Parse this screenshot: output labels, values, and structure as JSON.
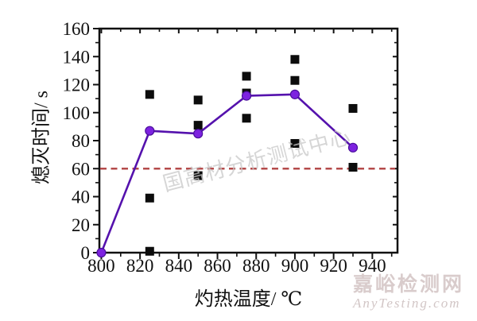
{
  "chart_data": {
    "type": "line",
    "title": "",
    "xlabel": "灼热温度/ ℃",
    "ylabel": "熄灭时间/ s",
    "xlim": [
      799,
      953
    ],
    "ylim": [
      0,
      160
    ],
    "x_major_ticks": [
      800,
      820,
      840,
      860,
      880,
      900,
      920,
      940
    ],
    "x_minor_ticks": [
      810,
      830,
      850,
      870,
      890,
      910,
      930,
      950
    ],
    "y_major_ticks": [
      0,
      20,
      40,
      60,
      80,
      100,
      120,
      140,
      160
    ],
    "y_minor_ticks": [
      10,
      30,
      50,
      70,
      90,
      110,
      130,
      150
    ],
    "grid": false,
    "legend": false,
    "reference_line": {
      "y": 60,
      "style": "dashed",
      "color": "#b54b4b"
    },
    "series": [
      {
        "name": "individual-measurements",
        "type": "scatter",
        "marker": "square",
        "color": "#0c0c0c",
        "points": [
          [
            825,
            113
          ],
          [
            825,
            39
          ],
          [
            825,
            1
          ],
          [
            850,
            109
          ],
          [
            850,
            91
          ],
          [
            850,
            55
          ],
          [
            875,
            126
          ],
          [
            875,
            114
          ],
          [
            875,
            96
          ],
          [
            900,
            138
          ],
          [
            900,
            123
          ],
          [
            900,
            78
          ],
          [
            930,
            103
          ],
          [
            930,
            61
          ]
        ]
      },
      {
        "name": "mean-extinguish-time",
        "type": "line",
        "marker": "circle",
        "line_color": "#5512ad",
        "marker_color": "#7d22e0",
        "marker_edge": "#4a0f9c",
        "points": [
          [
            800,
            0
          ],
          [
            825,
            87
          ],
          [
            850,
            85
          ],
          [
            875,
            112
          ],
          [
            900,
            113
          ],
          [
            930,
            75
          ]
        ]
      }
    ]
  },
  "watermarks": {
    "diagonal_text": "国高材分析测试中心",
    "site_name": "嘉峪检测网",
    "site_url": "AnyTesting.com"
  },
  "colors": {
    "axis": "#111111",
    "background": "#ffffff"
  }
}
